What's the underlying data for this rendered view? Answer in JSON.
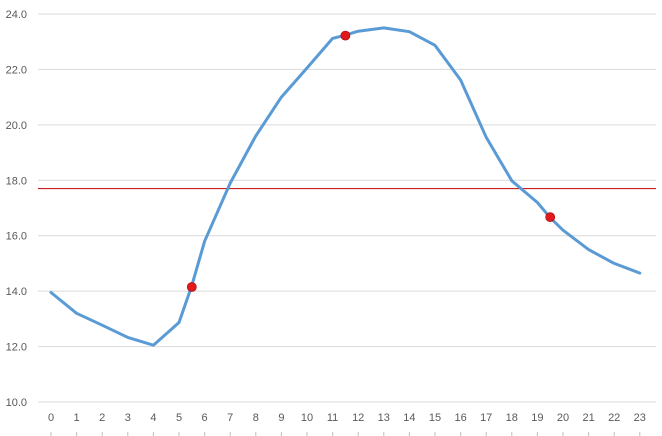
{
  "chart_data": {
    "type": "line",
    "title": "",
    "xlabel": "",
    "ylabel": "",
    "categories": [
      "0",
      "1",
      "2",
      "3",
      "4",
      "5",
      "6",
      "7",
      "8",
      "9",
      "10",
      "11",
      "12",
      "13",
      "14",
      "15",
      "16",
      "17",
      "18",
      "19",
      "20",
      "21",
      "22",
      "23"
    ],
    "x_ticks": [
      0,
      1,
      2,
      3,
      4,
      5,
      6,
      7,
      8,
      9,
      10,
      11,
      12,
      13,
      14,
      15,
      16,
      17,
      18,
      19,
      20,
      21,
      22,
      23
    ],
    "ylim": [
      10.0,
      24.0
    ],
    "y_ticks": [
      "10.0",
      "12.0",
      "14.0",
      "16.0",
      "18.0",
      "20.0",
      "22.0",
      "24.0"
    ],
    "grid": "horizontal",
    "legend": "none",
    "series": [
      {
        "color": "#5B9BD5",
        "points": [
          [
            0,
            13.95
          ],
          [
            1,
            13.2
          ],
          [
            2,
            12.77
          ],
          [
            3,
            12.33
          ],
          [
            4,
            12.05
          ],
          [
            5,
            12.87
          ],
          [
            5.5,
            14.2
          ],
          [
            6,
            15.8
          ],
          [
            7,
            17.9
          ],
          [
            8,
            19.6
          ],
          [
            9,
            21.0
          ],
          [
            10,
            22.05
          ],
          [
            11,
            23.12
          ],
          [
            11.5,
            23.24
          ],
          [
            12,
            23.38
          ],
          [
            13,
            23.5
          ],
          [
            14,
            23.36
          ],
          [
            15,
            22.87
          ],
          [
            16,
            21.62
          ],
          [
            17,
            19.55
          ],
          [
            18,
            17.98
          ],
          [
            19,
            17.2
          ],
          [
            19.5,
            16.65
          ],
          [
            20,
            16.2
          ],
          [
            21,
            15.5
          ],
          [
            22,
            15.0
          ],
          [
            23,
            14.65
          ]
        ]
      }
    ],
    "markers": {
      "color": "#E31A1C",
      "points": [
        [
          5.5,
          14.15
        ],
        [
          11.5,
          23.22
        ],
        [
          19.5,
          16.67
        ]
      ]
    },
    "reference_line": {
      "y": 17.7,
      "color": "#C00000"
    }
  }
}
